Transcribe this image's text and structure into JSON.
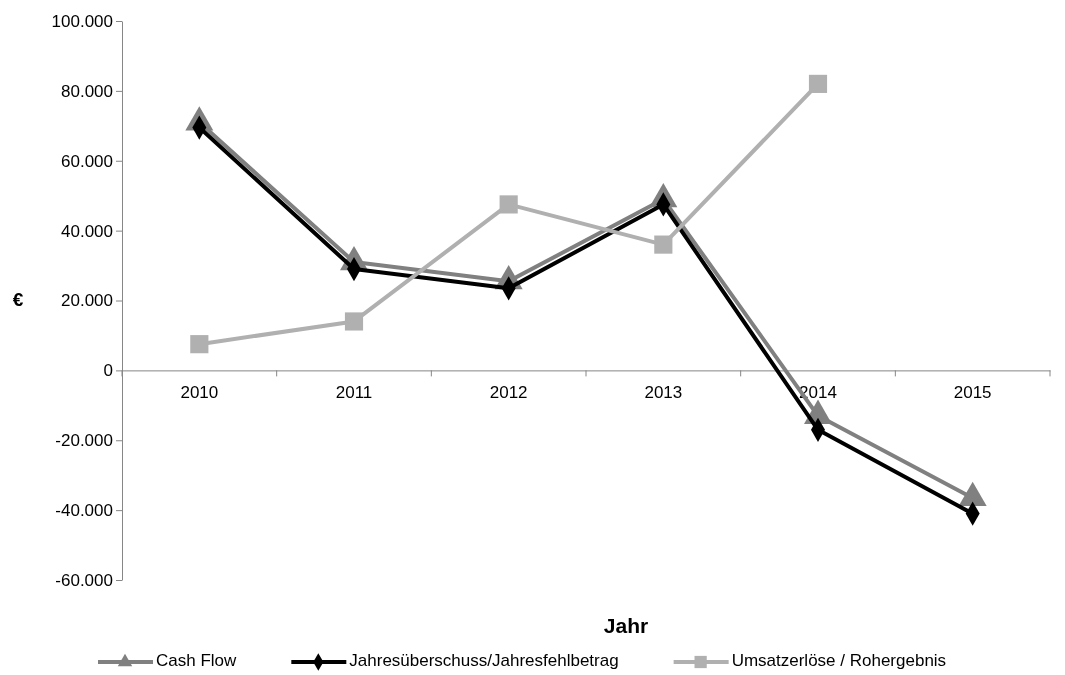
{
  "chart_data": {
    "type": "line",
    "xlabel": "Jahr",
    "ylabel": "€",
    "categories": [
      "2010",
      "2011",
      "2012",
      "2013",
      "2014",
      "2015"
    ],
    "ylim": [
      -60000,
      100000
    ],
    "yticks": [
      {
        "value": -60000,
        "label": "-60.000"
      },
      {
        "value": -40000,
        "label": "-40.000"
      },
      {
        "value": -20000,
        "label": "-20.000"
      },
      {
        "value": 0,
        "label": "0"
      },
      {
        "value": 20000,
        "label": "20.000"
      },
      {
        "value": 40000,
        "label": "40.000"
      },
      {
        "value": 60000,
        "label": "60.000"
      },
      {
        "value": 80000,
        "label": "80.000"
      },
      {
        "value": 100000,
        "label": "100.000"
      }
    ],
    "legend": "bottom",
    "series": [
      {
        "name": "Cash Flow",
        "color": "#808080",
        "marker": "triangle",
        "values": [
          71000,
          31000,
          25500,
          49000,
          -13000,
          -36500
        ]
      },
      {
        "name": "Jahresüberschuss/Jahresfehlbetrag",
        "color": "#000000",
        "marker": "diamond",
        "values": [
          69500,
          29000,
          23500,
          47500,
          -17000,
          -41000
        ]
      },
      {
        "name": "Umsatzerlöse / Rohergebnis",
        "color": "#b0b0b0",
        "marker": "square",
        "values": [
          7500,
          14000,
          47500,
          36000,
          82000,
          null
        ]
      }
    ]
  }
}
